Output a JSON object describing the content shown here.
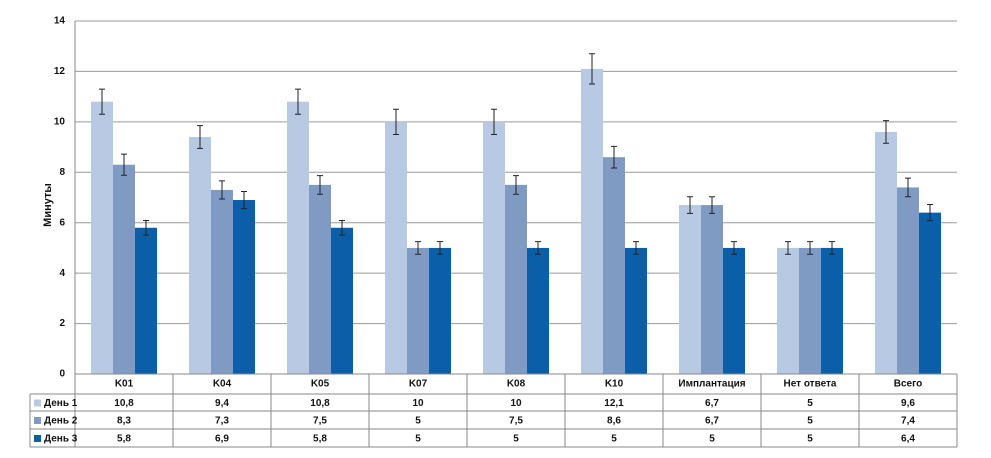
{
  "chart_data": {
    "type": "bar",
    "y_label": "Минуты",
    "categories": [
      "K01",
      "K04",
      "K05",
      "K07",
      "K08",
      "K10",
      "Имплантация",
      "Нет ответа",
      "Всего"
    ],
    "series": [
      {
        "name": "День 1",
        "color": "#b8c9e3",
        "values": [
          10.8,
          9.4,
          10.8,
          10,
          10,
          12.1,
          6.7,
          5,
          9.6
        ],
        "value_labels": [
          "10,8",
          "9,4",
          "10,8",
          "10",
          "10",
          "12,1",
          "6,7",
          "5",
          "9,6"
        ],
        "errors": [
          0.5,
          0.45,
          0.5,
          0.5,
          0.5,
          0.6,
          0.33,
          0.25,
          0.45
        ]
      },
      {
        "name": "День 2",
        "color": "#7f9bc4",
        "values": [
          8.3,
          7.3,
          7.5,
          5,
          7.5,
          8.6,
          6.7,
          5,
          7.4
        ],
        "value_labels": [
          "8,3",
          "7,3",
          "7,5",
          "5",
          "7,5",
          "8,6",
          "6,7",
          "5",
          "7,4"
        ],
        "errors": [
          0.42,
          0.36,
          0.37,
          0.25,
          0.37,
          0.43,
          0.33,
          0.25,
          0.37
        ]
      },
      {
        "name": "День 3",
        "color": "#0b5ea8",
        "values": [
          5.8,
          6.9,
          5.8,
          5,
          5,
          5,
          5,
          5,
          6.4
        ],
        "value_labels": [
          "5,8",
          "6,9",
          "5,8",
          "5",
          "5",
          "5",
          "5",
          "5",
          "6,4"
        ],
        "errors": [
          0.29,
          0.34,
          0.29,
          0.25,
          0.25,
          0.25,
          0.25,
          0.25,
          0.32
        ]
      }
    ],
    "ylim": [
      0,
      14
    ],
    "yticks": [
      0,
      2,
      4,
      6,
      8,
      10,
      12,
      14
    ],
    "grid": true
  }
}
